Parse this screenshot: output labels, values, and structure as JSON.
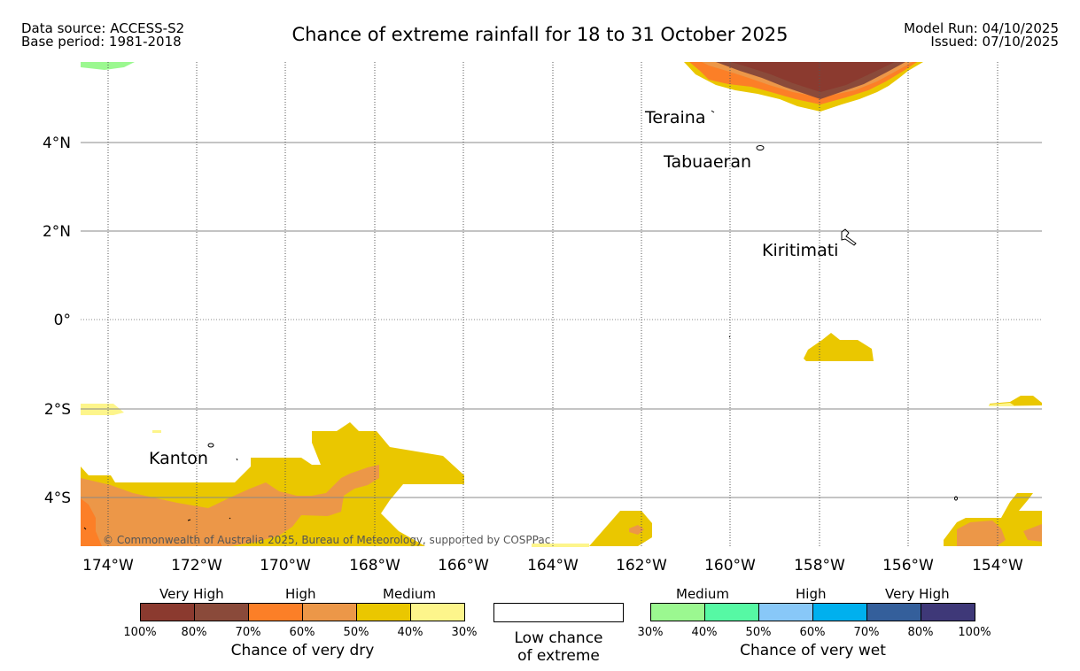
{
  "header": {
    "data_source": "Data source: ACCESS-S2",
    "base_period": "Base period: 1981-2018",
    "title": "Chance of extreme rainfall for 18 to 31 October 2025",
    "model_run": "Model Run: 04/10/2025",
    "issued": "Issued: 07/10/2025"
  },
  "map": {
    "lon_labels": [
      "174°W",
      "172°W",
      "170°W",
      "168°W",
      "166°W",
      "164°W",
      "162°W",
      "160°W",
      "158°W",
      "156°W",
      "154°W"
    ],
    "lat_labels": [
      "4°N",
      "2°N",
      "0°",
      "2°S",
      "4°S"
    ],
    "places": {
      "teraina": "Teraina",
      "tabuaeran": "Tabuaeran",
      "kiritimati": "Kiritimati",
      "kanton": "Kanton"
    },
    "copyright": "© Commonwealth of Australia 2025, Bureau of Meteorology, supported by COSPPac"
  },
  "legend": {
    "dry": {
      "groups": [
        "Very High",
        "High",
        "Medium"
      ],
      "ticks": [
        "100%",
        "80%",
        "70%",
        "60%",
        "50%",
        "40%",
        "30%"
      ],
      "title": "Chance of very dry",
      "colors": [
        "#8b3a2f",
        "#8a4a3a",
        "#fc7f27",
        "#ec9748",
        "#eac700",
        "#fdf58b"
      ]
    },
    "low": {
      "line1": "Low chance",
      "line2": "of extreme"
    },
    "wet": {
      "groups": [
        "Medium",
        "High",
        "Very High"
      ],
      "ticks": [
        "30%",
        "40%",
        "50%",
        "60%",
        "70%",
        "80%",
        "100%"
      ],
      "title": "Chance of very wet",
      "colors": [
        "#9bf890",
        "#56f9a4",
        "#88c8f8",
        "#00b0ee",
        "#345f9b",
        "#3e3878"
      ]
    }
  }
}
